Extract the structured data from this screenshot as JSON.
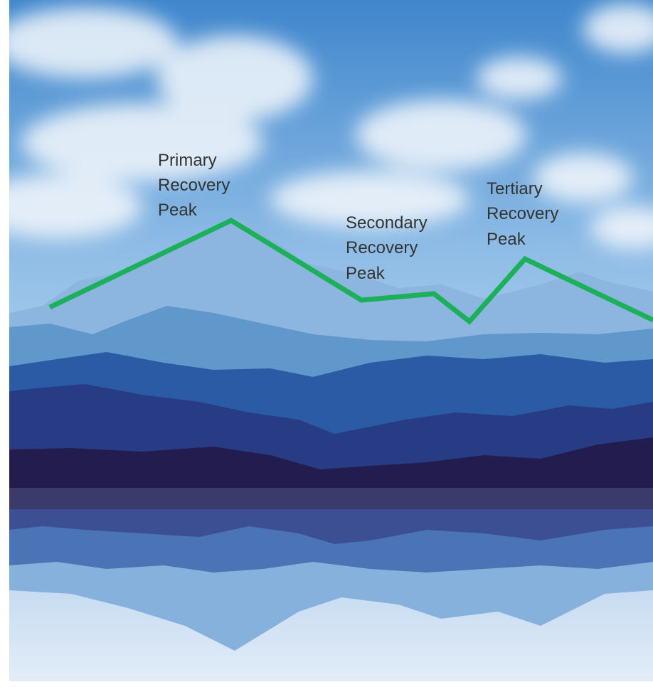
{
  "labels": [
    {
      "lines": [
        "Primary",
        "Recovery",
        "Peak"
      ]
    },
    {
      "lines": [
        "Secondary",
        "Recovery",
        "Peak"
      ]
    },
    {
      "lines": [
        "Tertiary",
        "Recovery",
        "Peak"
      ]
    }
  ]
}
